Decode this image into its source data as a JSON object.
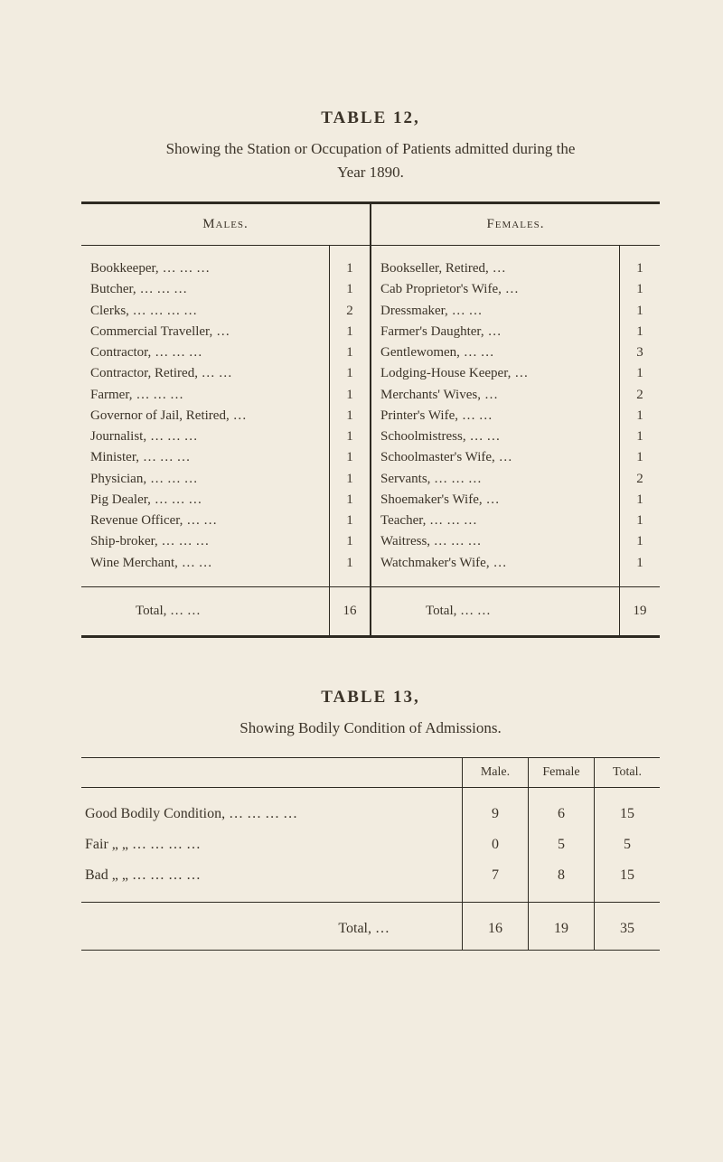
{
  "table12": {
    "title": "TABLE 12,",
    "subtitle_line1": "Showing the Station or Occupation of Patients admitted during the",
    "subtitle_line2": "Year 1890.",
    "males_header": "Males.",
    "females_header": "Females.",
    "males": [
      {
        "label": "Bookkeeper,",
        "dots": "…   …   …",
        "value": "1"
      },
      {
        "label": "Butcher,",
        "dots": "…   …   …",
        "value": "1"
      },
      {
        "label": "Clerks, …",
        "dots": "…   …   …",
        "value": "2"
      },
      {
        "label": "Commercial Traveller,",
        "dots": "…",
        "value": "1"
      },
      {
        "label": "Contractor,",
        "dots": "…   …   …",
        "value": "1"
      },
      {
        "label": "Contractor, Retired, …",
        "dots": "…",
        "value": "1"
      },
      {
        "label": "Farmer,",
        "dots": "…   …   …",
        "value": "1"
      },
      {
        "label": "Governor of Jail, Retired,",
        "dots": "…",
        "value": "1"
      },
      {
        "label": "Journalist,",
        "dots": "…   …   …",
        "value": "1"
      },
      {
        "label": "Minister,",
        "dots": "…   …   …",
        "value": "1"
      },
      {
        "label": "Physician,",
        "dots": "…   …   …",
        "value": "1"
      },
      {
        "label": "Pig Dealer,",
        "dots": "…   …   …",
        "value": "1"
      },
      {
        "label": "Revenue Officer,",
        "dots": "…   …",
        "value": "1"
      },
      {
        "label": "Ship-broker,  …",
        "dots": "…   …",
        "value": "1"
      },
      {
        "label": "Wine Merchant,",
        "dots": "…   …",
        "value": "1"
      }
    ],
    "females": [
      {
        "label": "Bookseller, Retired,",
        "dots": "…",
        "value": "1"
      },
      {
        "label": "Cab Proprietor's Wife,",
        "dots": "…",
        "value": "1"
      },
      {
        "label": "Dressmaker,",
        "dots": "…   …",
        "value": "1"
      },
      {
        "label": "Farmer's Daughter,",
        "dots": "…",
        "value": "1"
      },
      {
        "label": "Gentlewomen,",
        "dots": "…   …",
        "value": "3"
      },
      {
        "label": "Lodging-House Keeper,",
        "dots": "…",
        "value": "1"
      },
      {
        "label": "Merchants' Wives,",
        "dots": "…",
        "value": "2"
      },
      {
        "label": "Printer's Wife,",
        "dots": "…   …",
        "value": "1"
      },
      {
        "label": "Schoolmistress,",
        "dots": "…   …",
        "value": "1"
      },
      {
        "label": "Schoolmaster's Wife,",
        "dots": "…",
        "value": "1"
      },
      {
        "label": "Servants,   …",
        "dots": "…   …",
        "value": "2"
      },
      {
        "label": "Shoemaker's Wife,",
        "dots": "…",
        "value": "1"
      },
      {
        "label": "Teacher,    …",
        "dots": "…   …",
        "value": "1"
      },
      {
        "label": "Waitress,   …",
        "dots": "…   …",
        "value": "1"
      },
      {
        "label": "Watchmaker's Wife,",
        "dots": "…",
        "value": "1"
      }
    ],
    "total_label": "Total,        …   …",
    "males_total": "16",
    "females_total": "19"
  },
  "table13": {
    "title": "TABLE 13,",
    "subtitle": "Showing Bodily Condition of Admissions.",
    "headers": {
      "male": "Male.",
      "female": "Female",
      "total": "Total."
    },
    "rows": [
      {
        "label": "Good Bodily Condition, …      …      …      …",
        "male": "9",
        "female": "6",
        "total": "15"
      },
      {
        "label": "Fair      „          „      …      …      …      …",
        "male": "0",
        "female": "5",
        "total": "5"
      },
      {
        "label": "Bad      „          „      …      …      …      …",
        "male": "7",
        "female": "8",
        "total": "15"
      }
    ],
    "total_label": "Total,       …",
    "totals": {
      "male": "16",
      "female": "19",
      "total": "35"
    }
  }
}
